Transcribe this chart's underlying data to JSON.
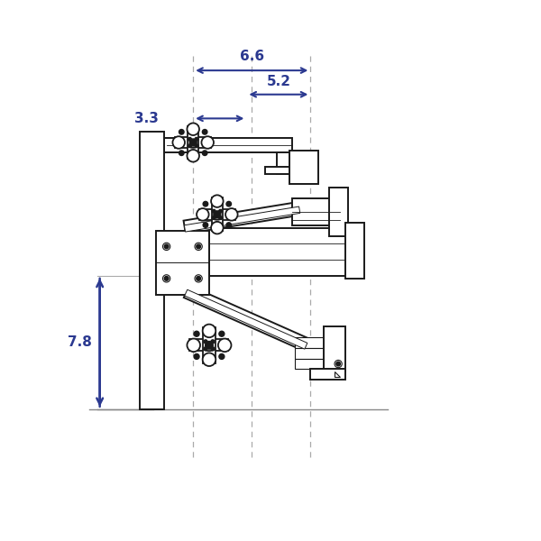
{
  "bg_color": "#ffffff",
  "line_color": "#1a1a1a",
  "dim_color": "#2b3990",
  "dash_color": "#aaaaaa",
  "dim_66": "6.6",
  "dim_52": "5.2",
  "dim_33": "3.3",
  "dim_78": "7.8",
  "figsize": [
    6.0,
    6.0
  ],
  "dpi": 100,
  "xlim": [
    0,
    10
  ],
  "ylim": [
    0,
    10
  ]
}
